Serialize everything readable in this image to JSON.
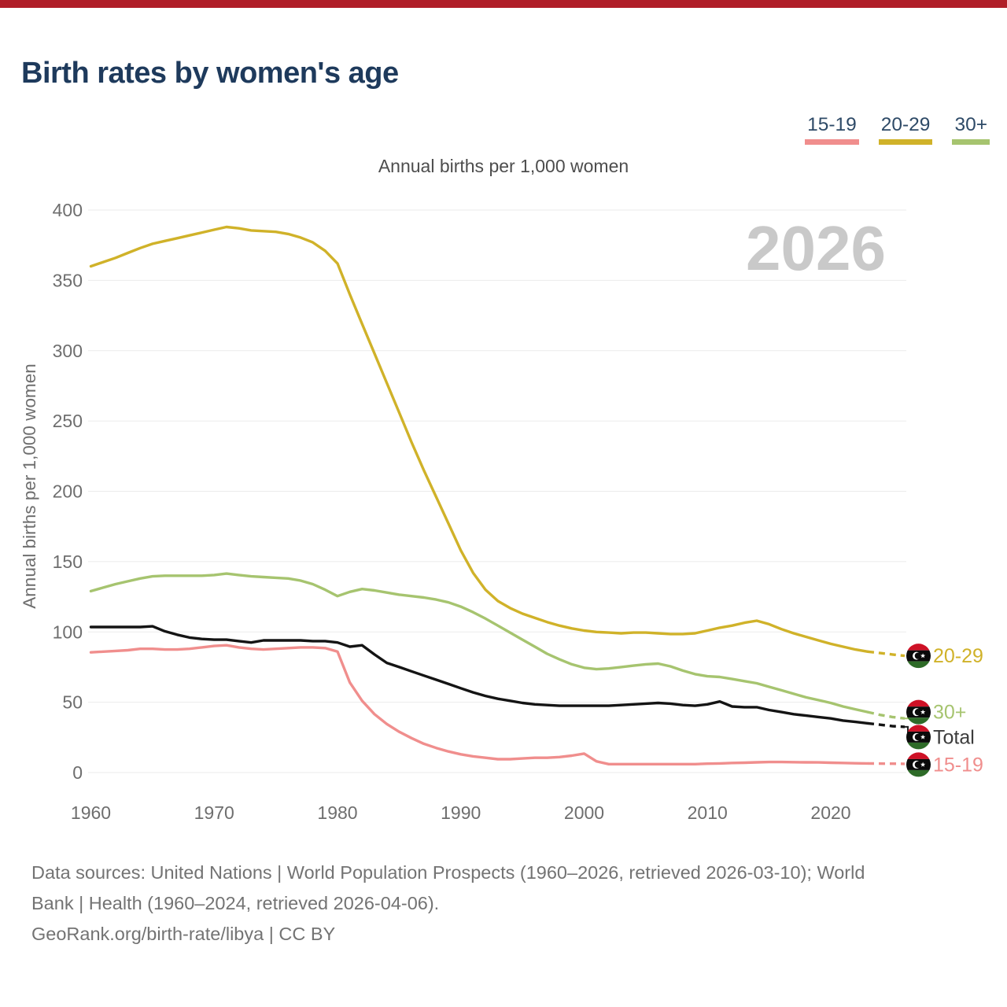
{
  "page": {
    "accent_bar_color": "#b01e28",
    "background": "#ffffff"
  },
  "header": {
    "title": "Birth rates by women's age",
    "title_color": "#1e3a5c"
  },
  "legend": {
    "text_color": "#2e4a67",
    "items": [
      {
        "label": "15-19",
        "color": "#f08e8d"
      },
      {
        "label": "20-29",
        "color": "#d0b229"
      },
      {
        "label": "30+",
        "color": "#a6c46f"
      }
    ]
  },
  "watermark": {
    "text": "2026",
    "color": "#c9c9c9"
  },
  "chart_data": {
    "type": "line",
    "title": "Annual births per 1,000 women",
    "ylabel": "Annual births per 1,000 women",
    "xlim": [
      1960,
      2026
    ],
    "ylim": [
      0,
      400
    ],
    "yticks": [
      0,
      50,
      100,
      150,
      200,
      250,
      300,
      350,
      400
    ],
    "xticks": [
      1960,
      1970,
      1980,
      1990,
      2000,
      2010,
      2020
    ],
    "grid": "horizontal",
    "gridline_color": "#ebebeb",
    "axis_text_color": "#6e6e6e",
    "legend_position": "top-right",
    "projection_dashed_from": 2023,
    "end_marker": "libya-flag",
    "x": [
      1960,
      1961,
      1962,
      1963,
      1964,
      1965,
      1966,
      1967,
      1968,
      1969,
      1970,
      1971,
      1972,
      1973,
      1974,
      1975,
      1976,
      1977,
      1978,
      1979,
      1980,
      1981,
      1982,
      1983,
      1984,
      1985,
      1986,
      1987,
      1988,
      1989,
      1990,
      1991,
      1992,
      1993,
      1994,
      1995,
      1996,
      1997,
      1998,
      1999,
      2000,
      2001,
      2002,
      2003,
      2004,
      2005,
      2006,
      2007,
      2008,
      2009,
      2010,
      2011,
      2012,
      2013,
      2014,
      2015,
      2016,
      2017,
      2018,
      2019,
      2020,
      2021,
      2022,
      2023,
      2024,
      2025,
      2026
    ],
    "series": [
      {
        "name": "20-29",
        "color": "#d0b229",
        "label_dy": 0,
        "values": [
          360,
          363,
          366,
          369.5,
          373,
          376,
          378,
          380,
          382,
          384,
          386,
          388,
          387,
          385.5,
          385,
          384.5,
          383,
          380.5,
          377,
          371,
          362,
          340,
          319,
          298,
          277,
          256,
          235,
          215,
          196,
          177,
          158,
          142,
          130,
          122,
          117,
          113,
          110,
          107,
          104.5,
          102.5,
          101,
          100,
          99.5,
          99,
          99.5,
          99.5,
          99,
          98.5,
          98.5,
          99,
          101,
          103,
          104.5,
          106.5,
          108,
          105.5,
          102,
          99,
          96.5,
          94,
          91.5,
          89.5,
          87.5,
          86,
          85,
          84,
          83
        ]
      },
      {
        "name": "30+",
        "color": "#a6c46f",
        "label_dy": -8,
        "values": [
          129,
          131.5,
          134,
          136,
          138,
          139.5,
          140,
          140,
          140,
          140,
          140.5,
          141.5,
          140.5,
          139.5,
          139,
          138.5,
          138,
          136.5,
          134,
          130,
          125.5,
          128.5,
          130.5,
          129.5,
          128,
          126.5,
          125.5,
          124.5,
          123,
          121,
          118,
          114,
          109.5,
          104.5,
          99.5,
          94.5,
          89.5,
          84.5,
          80.5,
          77,
          74.5,
          73.5,
          74,
          75,
          76,
          77,
          77.5,
          75.5,
          72.5,
          70,
          68.5,
          68,
          66.5,
          65,
          63.5,
          61,
          58.5,
          56,
          53.5,
          51.5,
          49.5,
          47,
          45,
          43,
          41,
          39.5,
          38.5
        ]
      },
      {
        "name": "Total",
        "color": "#141414",
        "label_color": "#3c3c3c",
        "leader_color": "#222222",
        "label_dy": 13,
        "values": [
          103.5,
          103.5,
          103.5,
          103.5,
          103.5,
          104,
          100.5,
          98,
          96,
          95,
          94.5,
          94.5,
          93.5,
          92.5,
          94,
          94,
          94,
          94,
          93.5,
          93.5,
          92.5,
          89.5,
          90.5,
          84,
          78,
          75,
          72,
          69,
          66,
          63,
          60,
          57,
          54.5,
          52.5,
          51,
          49.5,
          48.5,
          48,
          47.5,
          47.5,
          47.5,
          47.5,
          47.5,
          48,
          48.5,
          49,
          49.5,
          49,
          48,
          47.5,
          48.5,
          50.5,
          47,
          46.5,
          46.5,
          44.5,
          43,
          41.5,
          40.5,
          39.5,
          38.5,
          37,
          36,
          35,
          34,
          33,
          32.5
        ]
      },
      {
        "name": "15-19",
        "color": "#f08e8d",
        "label_dy": 1,
        "values": [
          85.5,
          86,
          86.5,
          87,
          88,
          88,
          87.5,
          87.5,
          88,
          89,
          90,
          90.5,
          89,
          88,
          87.5,
          88,
          88.5,
          89,
          89,
          88.5,
          86,
          64,
          51,
          41.5,
          34.5,
          29,
          24.5,
          20.5,
          17.5,
          15,
          13,
          11.5,
          10.5,
          9.5,
          9.5,
          10,
          10.5,
          10.5,
          11,
          12,
          13.5,
          8,
          6,
          6,
          6,
          6,
          6,
          6,
          6,
          6,
          6.3,
          6.5,
          6.8,
          7,
          7.3,
          7.5,
          7.5,
          7.4,
          7.3,
          7.2,
          7,
          6.8,
          6.6,
          6.5,
          6.4,
          6.3,
          6.2
        ]
      }
    ]
  },
  "footer": {
    "color": "#737373",
    "lines": [
      "Data sources: United Nations | World Population Prospects (1960–2026, retrieved 2026-03-10); World",
      "Bank | Health (1960–2024, retrieved 2026-04-06).",
      "GeoRank.org/birth-rate/libya | CC BY"
    ]
  }
}
